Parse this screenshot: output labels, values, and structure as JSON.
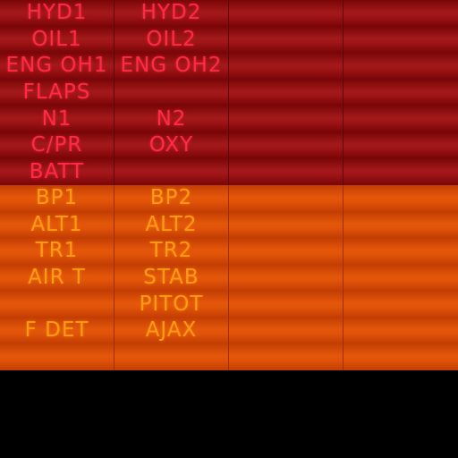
{
  "colors": {
    "warning_panel": "#8a0a0c",
    "warning_text": "#ff2a45",
    "caution_panel": "#d74a05",
    "caution_text": "#ff9a14",
    "background": "#000000"
  },
  "warning_panel": {
    "rows": [
      [
        "HYD1",
        "HYD2",
        "",
        ""
      ],
      [
        "OIL1",
        "OIL2",
        "",
        ""
      ],
      [
        "ENG OH1",
        "ENG OH2",
        "",
        ""
      ],
      [
        "FLAPS",
        "",
        "",
        ""
      ],
      [
        "N1",
        "N2",
        "",
        ""
      ],
      [
        "C/PR",
        "OXY",
        "",
        ""
      ],
      [
        "BATT",
        "",
        "",
        ""
      ]
    ]
  },
  "caution_panel": {
    "rows": [
      [
        "BP1",
        "BP2",
        "",
        ""
      ],
      [
        "ALT1",
        "ALT2",
        "",
        ""
      ],
      [
        "TR1",
        "TR2",
        "",
        ""
      ],
      [
        "AIR T",
        "STAB",
        "",
        ""
      ],
      [
        "",
        "PITOT",
        "",
        ""
      ],
      [
        "F DET",
        "AJAX",
        "",
        ""
      ],
      [
        "",
        "",
        "",
        ""
      ]
    ]
  }
}
